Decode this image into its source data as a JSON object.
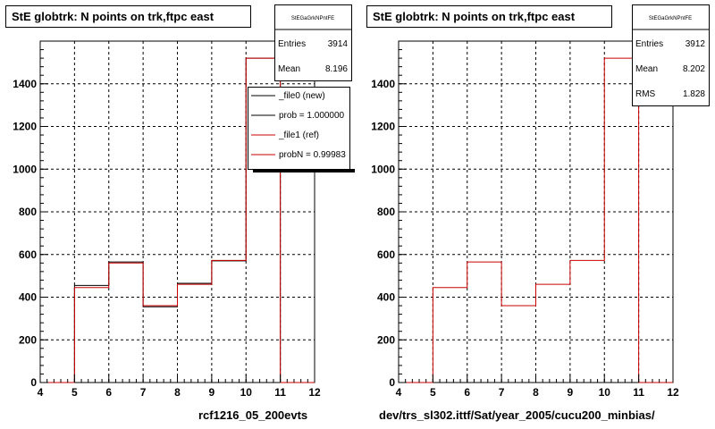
{
  "footer_text": "",
  "chart_data": [
    {
      "type": "bar",
      "subtype": "step-histogram",
      "title": "StE globtrk: N points on trk,ftpc east",
      "xlabel": "rcf1216_05_200evts",
      "ylabel": "",
      "xlim": [
        4,
        12
      ],
      "ylim": [
        0,
        1600
      ],
      "x_ticks": [
        4,
        5,
        6,
        7,
        8,
        9,
        10,
        11,
        12
      ],
      "y_ticks": [
        0,
        200,
        400,
        600,
        800,
        1000,
        1200,
        1400
      ],
      "grid": true,
      "bin_edges": [
        4,
        5,
        6,
        7,
        8,
        9,
        10,
        11,
        12
      ],
      "series": [
        {
          "name": "_file0 (new)",
          "color": "#000000",
          "values": [
            0,
            455,
            565,
            355,
            465,
            570,
            1520,
            0
          ]
        },
        {
          "name": "_file1 (ref)",
          "color": "#cc0000",
          "values": [
            0,
            445,
            560,
            360,
            460,
            572,
            1520,
            0
          ]
        }
      ],
      "stats": {
        "header": "StEGaGrkNPntFE",
        "rows": [
          {
            "label": "Entries",
            "value": "3914"
          },
          {
            "label": "Mean",
            "value": "8.196"
          }
        ]
      },
      "legend": {
        "placement": "top-right",
        "entries": [
          {
            "label": "_file0 (new)",
            "color": "#000000"
          },
          {
            "label": "prob = 1.000000",
            "color": "#000000"
          },
          {
            "label": "_file1 (ref)",
            "color": "#cc0000"
          },
          {
            "label": "probN = 0.99983",
            "color": "#cc0000"
          }
        ]
      }
    },
    {
      "type": "bar",
      "subtype": "step-histogram",
      "title": "StE globtrk: N points on trk,ftpc east",
      "xlabel": "dev/trs_sl302.ittf/Sat/year_2005/cucu200_minbias/",
      "ylabel": "",
      "xlim": [
        4,
        12
      ],
      "ylim": [
        0,
        1600
      ],
      "x_ticks": [
        4,
        5,
        6,
        7,
        8,
        9,
        10,
        11,
        12
      ],
      "y_ticks": [
        0,
        200,
        400,
        600,
        800,
        1000,
        1200,
        1400
      ],
      "grid": true,
      "bin_edges": [
        4,
        5,
        6,
        7,
        8,
        9,
        10,
        11,
        12
      ],
      "series": [
        {
          "name": "",
          "color": "#cc0000",
          "values": [
            0,
            445,
            565,
            360,
            460,
            572,
            1520,
            0
          ]
        }
      ],
      "stats": {
        "header": "StEGaGrkNPntFE",
        "rows": [
          {
            "label": "Entries",
            "value": "3912"
          },
          {
            "label": "Mean",
            "value": "8.202"
          },
          {
            "label": "RMS",
            "value": "1.828"
          }
        ]
      }
    }
  ]
}
